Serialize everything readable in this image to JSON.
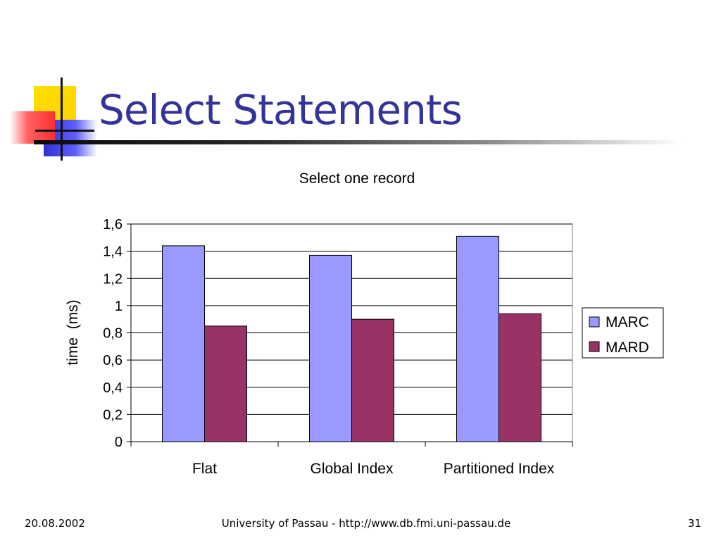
{
  "slide": {
    "title": "Select Statements"
  },
  "footer": {
    "date": "20.08.2002",
    "center": "University of Passau - http://www.db.fmi.uni-passau.de",
    "page": "31"
  },
  "colors": {
    "title": "#333399",
    "MARC": "#9999ff",
    "MARD": "#993366"
  },
  "chart_data": {
    "type": "bar",
    "title": "Select one record",
    "xlabel": "",
    "ylabel": "time  (ms)",
    "categories": [
      "Flat",
      "Global Index",
      "Partitioned Index"
    ],
    "series": [
      {
        "name": "MARC",
        "values": [
          1.44,
          1.37,
          1.51
        ]
      },
      {
        "name": "MARD",
        "values": [
          0.85,
          0.9,
          0.94
        ]
      }
    ],
    "ylim": [
      0,
      1.6
    ],
    "yticks": [
      "0",
      "0,2",
      "0,4",
      "0,6",
      "0,8",
      "1",
      "1,2",
      "1,4",
      "1,6"
    ],
    "grid": true,
    "legend": "right"
  }
}
